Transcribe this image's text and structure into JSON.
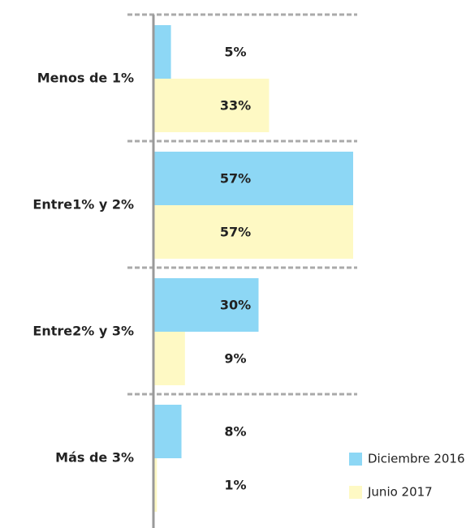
{
  "chart_data": {
    "type": "bar",
    "orientation": "horizontal",
    "categories": [
      "Menos de 1%",
      "Entre1% y 2%",
      "Entre2% y 3%",
      "Más de 3%"
    ],
    "series": [
      {
        "name": "Diciembre 2016",
        "color": "#8dd7f5",
        "values": [
          5,
          57,
          30,
          8
        ],
        "value_labels": [
          "5%",
          "57%",
          "30%",
          "8%"
        ]
      },
      {
        "name": "Junio 2017",
        "color": "#fef9c4",
        "values": [
          33,
          57,
          9,
          1
        ],
        "value_labels": [
          "33%",
          "57%",
          "9%",
          "1%"
        ]
      }
    ],
    "legend": "lower right"
  }
}
